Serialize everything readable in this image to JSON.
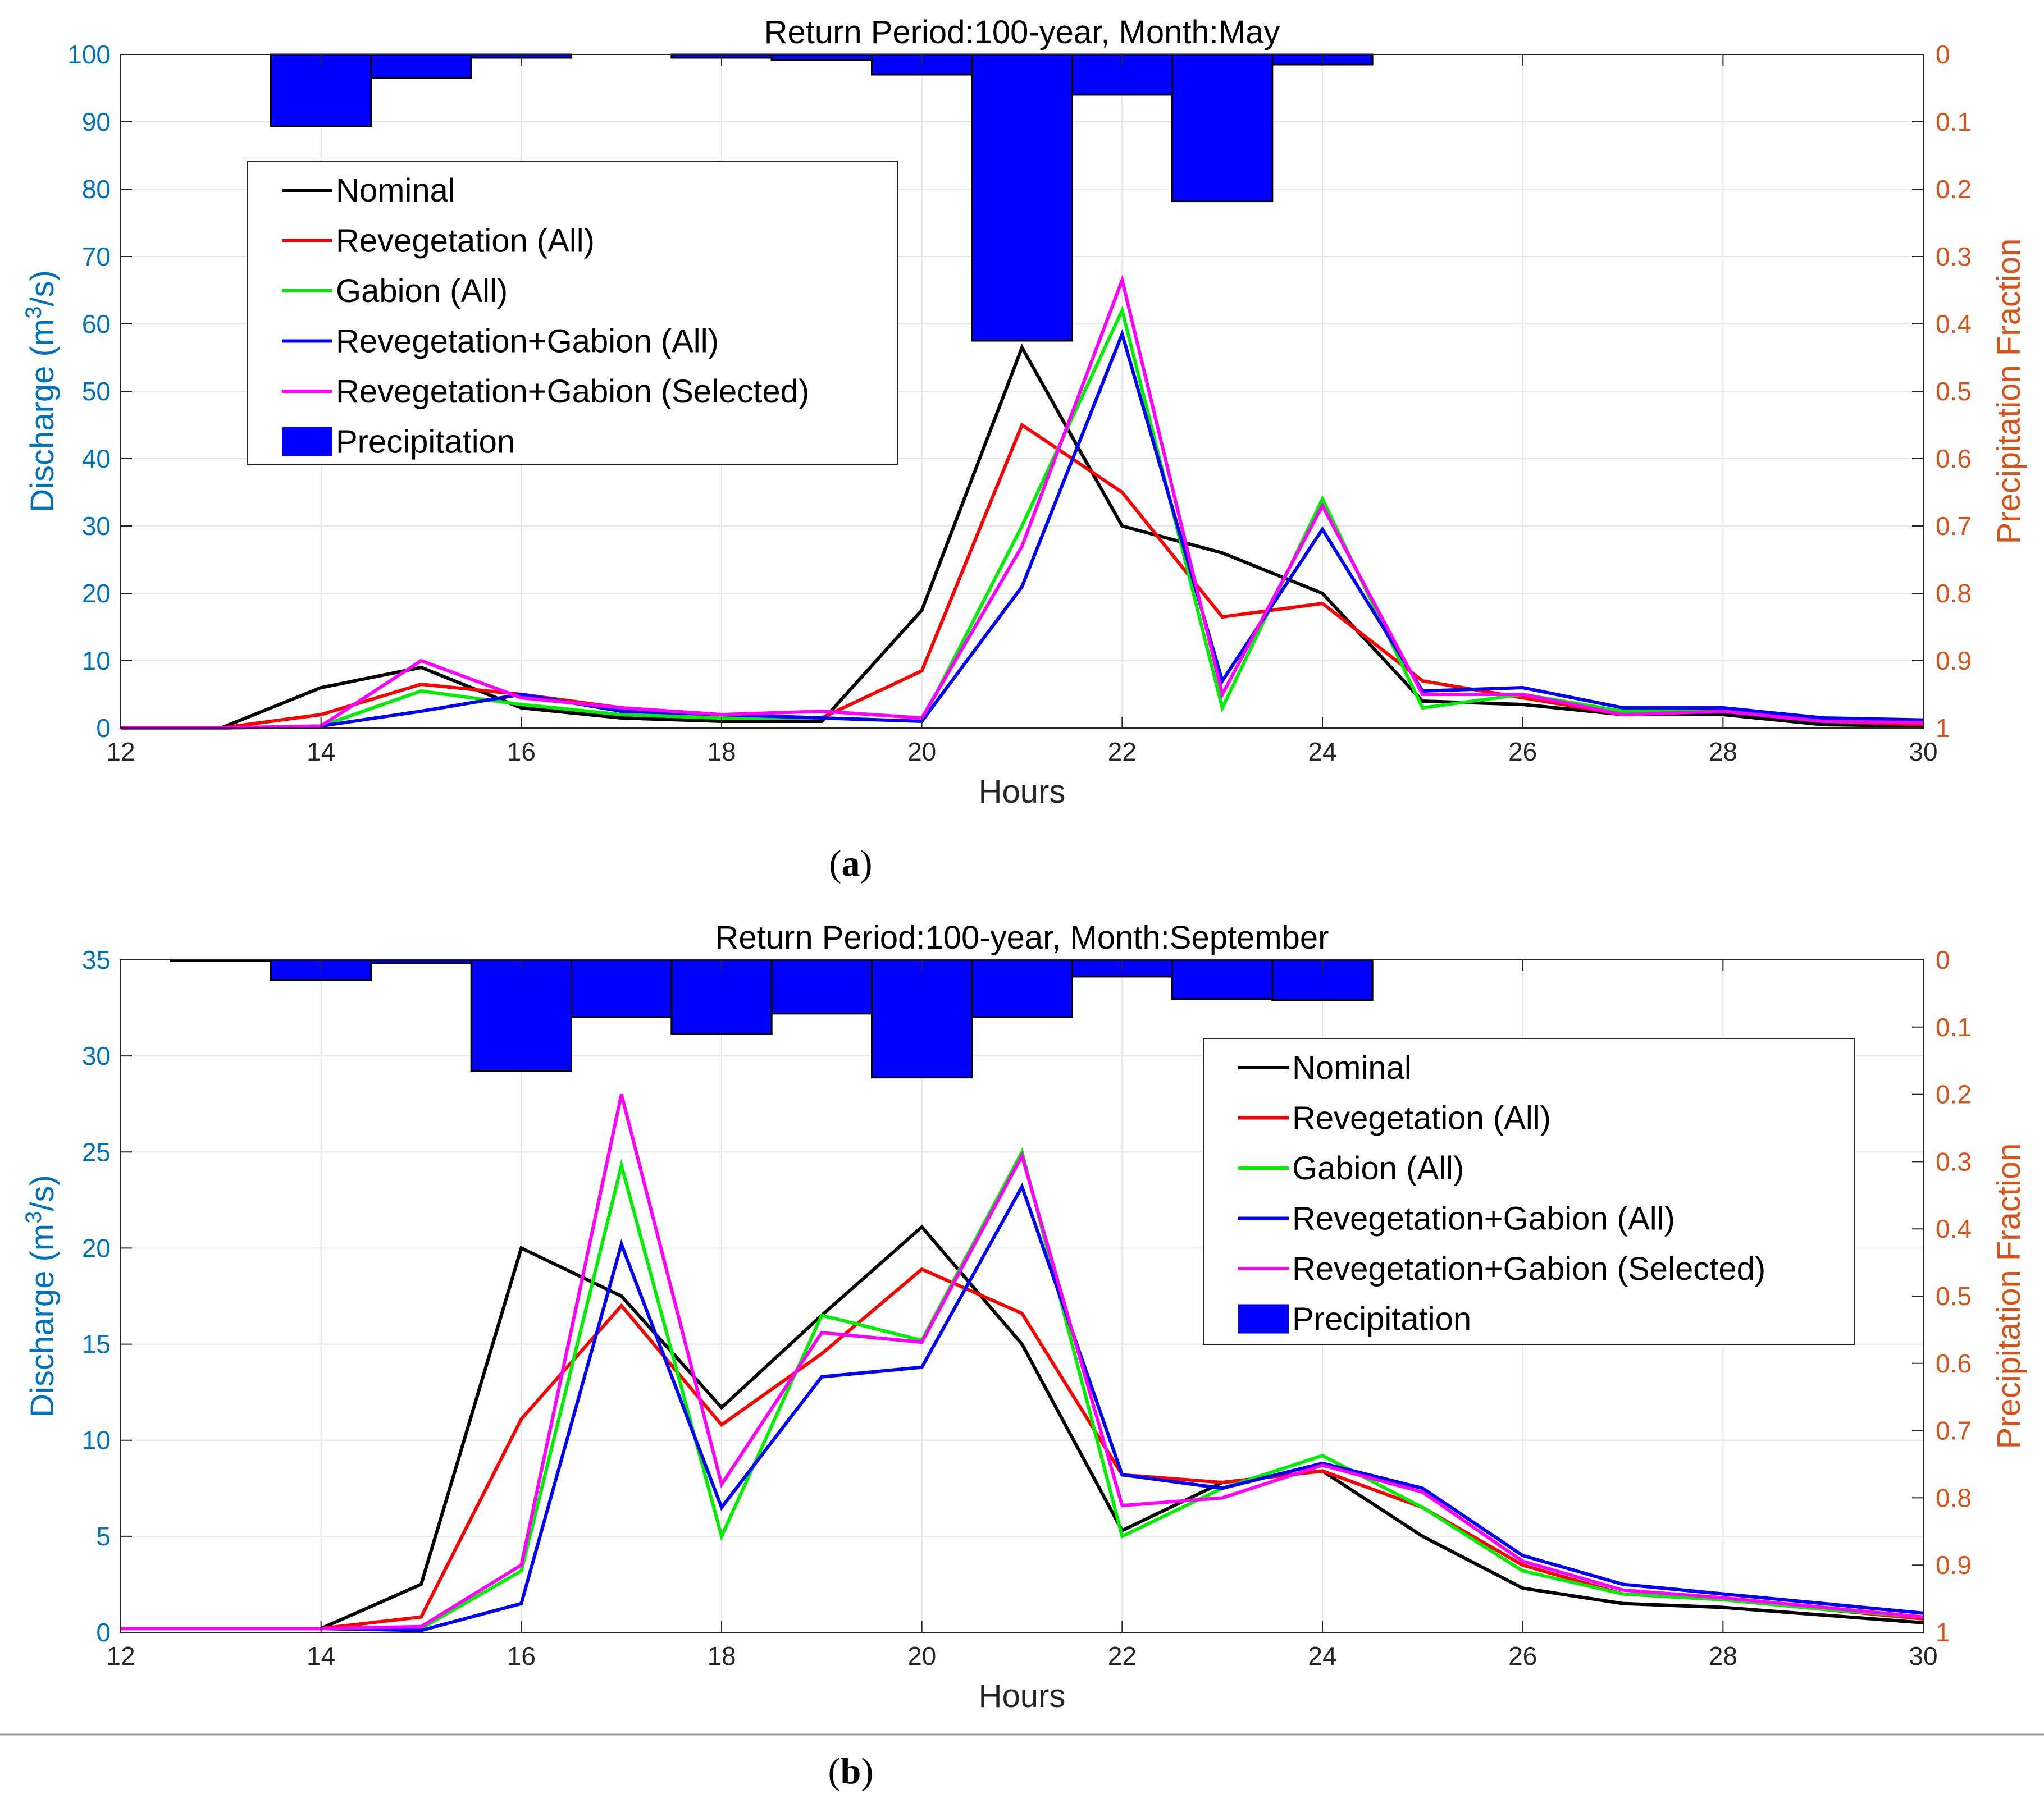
{
  "figure_separator": true,
  "chart_data": [
    {
      "type": "line",
      "panel": "a",
      "caption_letter": "a",
      "title": "Return Period:100-year, Month:May",
      "xlabel": "Hours",
      "ylabel": "Discharge (m3/s)",
      "ylabel_parts": {
        "pre": "Discharge (m",
        "sup": "3",
        "post": "/s)"
      },
      "y2label": "Precipitation Fraction",
      "xlim": [
        12,
        30
      ],
      "ylim": [
        0,
        100
      ],
      "y2lim": [
        0,
        1
      ],
      "y2_reversed": true,
      "grid": true,
      "xticks": [
        12,
        14,
        16,
        18,
        20,
        22,
        24,
        26,
        28,
        30
      ],
      "yticks": [
        0,
        10,
        20,
        30,
        40,
        50,
        60,
        70,
        80,
        90,
        100
      ],
      "y2ticks": [
        0,
        0.1,
        0.2,
        0.3,
        0.4,
        0.5,
        0.6,
        0.7,
        0.8,
        0.9,
        1
      ],
      "x": [
        12,
        13,
        14,
        15,
        16,
        17,
        18,
        19,
        20,
        21,
        22,
        23,
        24,
        25,
        26,
        27,
        28,
        29,
        30
      ],
      "series": [
        {
          "name": "Nominal",
          "color": "#000000",
          "values": [
            0,
            0,
            6,
            9,
            3,
            1.5,
            1,
            1,
            17.5,
            56.5,
            30,
            26,
            20,
            4,
            3.5,
            2,
            2,
            0.5,
            0.3
          ]
        },
        {
          "name": "Revegetation (All)",
          "color": "#ff0000",
          "values": [
            0,
            0,
            2,
            6.5,
            5,
            3,
            2,
            1.5,
            8.5,
            45,
            35,
            16.5,
            18.5,
            7,
            4.5,
            2,
            2.5,
            1,
            0.5
          ]
        },
        {
          "name": "Gabion (All)",
          "color": "#00ee00",
          "values": [
            0,
            0,
            0.3,
            5.5,
            3.5,
            2,
            1.5,
            1.5,
            1,
            30,
            62,
            3,
            34,
            3,
            5,
            2.5,
            2.5,
            1,
            0.8
          ]
        },
        {
          "name": "Revegetation+Gabion (All)",
          "color": "#0000ff",
          "values": [
            0,
            0,
            0.3,
            2.5,
            5,
            2.5,
            2,
            1.5,
            1,
            21,
            58.5,
            7,
            29.5,
            5.5,
            6,
            3,
            3,
            1.5,
            1.2
          ]
        },
        {
          "name": "Revegetation+Gabion (Selected)",
          "color": "#ff00ff",
          "values": [
            0,
            0,
            0.3,
            10,
            4.5,
            3,
            2,
            2.5,
            1.5,
            27,
            66.5,
            5,
            33,
            5,
            5,
            2,
            2.5,
            1,
            0.8
          ]
        }
      ],
      "precipitation": {
        "name": "Precipitation",
        "color": "#0000ff",
        "x": [
          14,
          15,
          16,
          17,
          18,
          19,
          20,
          21,
          22,
          23,
          24
        ],
        "values": [
          0.107,
          0.035,
          0.005,
          0.0,
          0.005,
          0.008,
          0.03,
          0.425,
          0.06,
          0.218,
          0.015
        ]
      },
      "legend_location": "upper-left"
    },
    {
      "type": "line",
      "panel": "b",
      "caption_letter": "b",
      "title": "Return Period:100-year, Month:September",
      "xlabel": "Hours",
      "ylabel": "Discharge (m3/s)",
      "ylabel_parts": {
        "pre": "Discharge (m",
        "sup": "3",
        "post": "/s)"
      },
      "y2label": "Precipitation Fraction",
      "xlim": [
        12,
        30
      ],
      "ylim": [
        0,
        35
      ],
      "y2lim": [
        0,
        1
      ],
      "y2_reversed": true,
      "grid": true,
      "xticks": [
        12,
        14,
        16,
        18,
        20,
        22,
        24,
        26,
        28,
        30
      ],
      "yticks": [
        0,
        5,
        10,
        15,
        20,
        25,
        30,
        35
      ],
      "y2ticks": [
        0,
        0.1,
        0.2,
        0.3,
        0.4,
        0.5,
        0.6,
        0.7,
        0.8,
        0.9,
        1
      ],
      "x": [
        12,
        13,
        14,
        15,
        16,
        17,
        18,
        19,
        20,
        21,
        22,
        23,
        24,
        25,
        26,
        27,
        28,
        29,
        30
      ],
      "series": [
        {
          "name": "Nominal",
          "color": "#000000",
          "values": [
            0.2,
            0.2,
            0.2,
            2.5,
            20,
            17.5,
            11.7,
            16.5,
            21.1,
            15,
            5.3,
            7.8,
            8.4,
            5,
            2.3,
            1.5,
            1.3,
            0.9,
            0.5
          ]
        },
        {
          "name": "Revegetation (All)",
          "color": "#ff0000",
          "values": [
            0.2,
            0.2,
            0.2,
            0.8,
            11.1,
            17,
            10.8,
            14.5,
            18.9,
            16.6,
            8.2,
            7.8,
            8.4,
            6.5,
            3.5,
            2,
            1.7,
            1.2,
            0.7
          ]
        },
        {
          "name": "Gabion (All)",
          "color": "#00ee00",
          "values": [
            0.2,
            0.2,
            0.2,
            0.2,
            3.2,
            24.3,
            5,
            16.5,
            15.2,
            25,
            5,
            7.5,
            9.2,
            6.5,
            3.2,
            2,
            1.7,
            1.2,
            0.8
          ]
        },
        {
          "name": "Revegetation+Gabion (All)",
          "color": "#0000ff",
          "values": [
            0.2,
            0.2,
            0.2,
            0.1,
            1.5,
            20.2,
            6.5,
            13.3,
            13.8,
            23.2,
            8.2,
            7.5,
            8.8,
            7.5,
            4,
            2.5,
            2,
            1.5,
            1
          ]
        },
        {
          "name": "Revegetation+Gabion (Selected)",
          "color": "#ff00ff",
          "values": [
            0.2,
            0.2,
            0.2,
            0.3,
            3.5,
            28,
            7.7,
            15.6,
            15.1,
            24.8,
            6.6,
            7,
            8.7,
            7.3,
            3.7,
            2.2,
            1.8,
            1.3,
            0.8
          ]
        }
      ],
      "precipitation": {
        "name": "Precipitation",
        "color": "#0000ff",
        "x": [
          13,
          14,
          15,
          16,
          17,
          18,
          19,
          20,
          21,
          22,
          23,
          24
        ],
        "values": [
          0.002,
          0.03,
          0.005,
          0.165,
          0.085,
          0.11,
          0.08,
          0.175,
          0.085,
          0.025,
          0.058,
          0.06
        ]
      },
      "legend_location": "upper-right"
    }
  ]
}
